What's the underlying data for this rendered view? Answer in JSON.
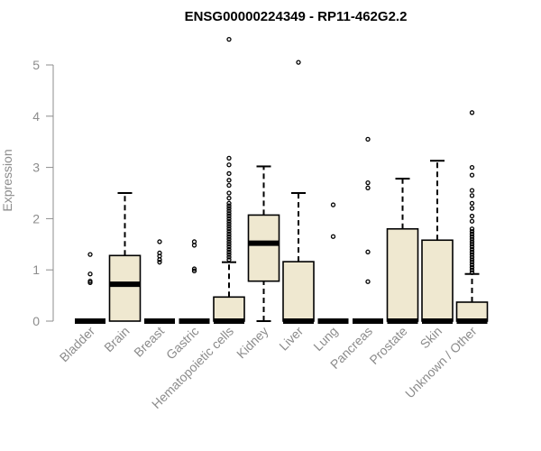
{
  "chart_data": {
    "type": "boxplot",
    "title": "ENSG00000224349 - RP11-462G2.2",
    "xlabel": "",
    "ylabel": "Expression",
    "ylim": [
      0,
      5.5
    ],
    "yticks": [
      0,
      1,
      2,
      3,
      4,
      5
    ],
    "box_fill": "#efe8d0",
    "box_stroke": "#000000",
    "categories": [
      "Bladder",
      "Brain",
      "Breast",
      "Gastric",
      "Hematopoietic cells",
      "Kidney",
      "Liver",
      "Lung",
      "Pancreas",
      "Prostate",
      "Skin",
      "Unknown / Other"
    ],
    "boxes": [
      {
        "min": 0,
        "q1": 0,
        "median": 0,
        "q3": 0,
        "max": 0,
        "outliers": [
          0.75,
          0.78,
          0.92,
          1.3
        ]
      },
      {
        "min": 0,
        "q1": 0,
        "median": 0.72,
        "q3": 1.28,
        "max": 2.5,
        "outliers": []
      },
      {
        "min": 0,
        "q1": 0,
        "median": 0,
        "q3": 0,
        "max": 0,
        "outliers": [
          1.15,
          1.2,
          1.27,
          1.33,
          1.55
        ]
      },
      {
        "min": 0,
        "q1": 0,
        "median": 0,
        "q3": 0,
        "max": 0,
        "outliers": [
          0.98,
          1.02,
          1.48,
          1.55
        ]
      },
      {
        "min": 0,
        "q1": 0,
        "median": 0,
        "q3": 0.47,
        "max": 1.15,
        "outliers": [
          1.2,
          1.25,
          1.3,
          1.35,
          1.4,
          1.45,
          1.5,
          1.55,
          1.6,
          1.65,
          1.7,
          1.75,
          1.8,
          1.85,
          1.9,
          1.95,
          2.0,
          2.05,
          2.1,
          2.15,
          2.2,
          2.25,
          2.3,
          2.4,
          2.5,
          2.65,
          2.75,
          2.88,
          3.05,
          3.18,
          5.5
        ]
      },
      {
        "min": 0,
        "q1": 0.78,
        "median": 1.52,
        "q3": 2.07,
        "max": 3.02,
        "outliers": []
      },
      {
        "min": 0,
        "q1": 0,
        "median": 0,
        "q3": 1.16,
        "max": 2.5,
        "outliers": [
          5.05
        ]
      },
      {
        "min": 0,
        "q1": 0,
        "median": 0,
        "q3": 0,
        "max": 0,
        "outliers": [
          1.65,
          2.27
        ]
      },
      {
        "min": 0,
        "q1": 0,
        "median": 0,
        "q3": 0,
        "max": 0,
        "outliers": [
          0.77,
          1.35,
          2.6,
          2.7,
          3.55
        ]
      },
      {
        "min": 0,
        "q1": 0,
        "median": 0,
        "q3": 1.8,
        "max": 2.78,
        "outliers": []
      },
      {
        "min": 0,
        "q1": 0,
        "median": 0,
        "q3": 1.58,
        "max": 3.13,
        "outliers": []
      },
      {
        "min": 0,
        "q1": 0,
        "median": 0,
        "q3": 0.37,
        "max": 0.92,
        "outliers": [
          0.95,
          1.0,
          1.05,
          1.1,
          1.15,
          1.2,
          1.25,
          1.3,
          1.35,
          1.4,
          1.45,
          1.5,
          1.55,
          1.6,
          1.65,
          1.7,
          1.75,
          1.8,
          1.95,
          2.05,
          2.2,
          2.3,
          2.45,
          2.55,
          2.85,
          3.0,
          4.07
        ]
      }
    ]
  }
}
